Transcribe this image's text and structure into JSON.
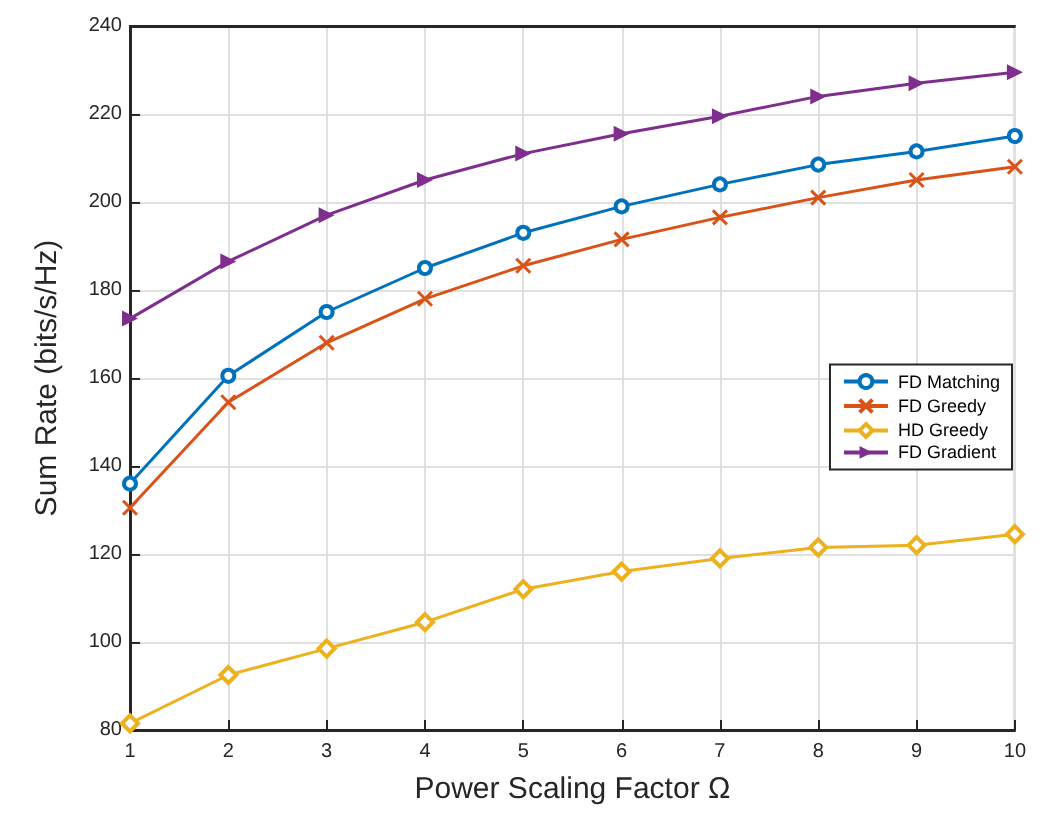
{
  "chart_data": {
    "type": "line",
    "xlabel": "Power Scaling Factor Ω",
    "ylabel": "Sum Rate (bits/s/Hz)",
    "x": [
      1,
      2,
      3,
      4,
      5,
      6,
      7,
      8,
      9,
      10
    ],
    "xlim": [
      1,
      10
    ],
    "xticks": [
      1,
      2,
      3,
      4,
      5,
      6,
      7,
      8,
      9,
      10
    ],
    "ylim": [
      80,
      240
    ],
    "yticks": [
      80,
      100,
      120,
      140,
      160,
      180,
      200,
      220,
      240
    ],
    "grid": true,
    "legend": "right",
    "series": [
      {
        "name": "FD Matching",
        "color": "#0072bd",
        "marker": "circle",
        "values": [
          136,
          160.5,
          175,
          185,
          193,
          199,
          204,
          208.5,
          211.5,
          215
        ]
      },
      {
        "name": "FD Greedy",
        "color": "#d95319",
        "marker": "cross",
        "values": [
          130.5,
          154.5,
          168,
          178,
          185.5,
          191.5,
          196.5,
          201,
          205,
          208
        ]
      },
      {
        "name": "HD Greedy",
        "color": "#edb120",
        "marker": "diamond",
        "values": [
          81.5,
          92.5,
          98.5,
          104.5,
          112,
          116,
          119,
          121.5,
          122,
          124.5
        ]
      },
      {
        "name": "FD Gradient",
        "color": "#7e2f8e",
        "marker": "triangle",
        "values": [
          173.5,
          186.5,
          197,
          205,
          211,
          215.5,
          219.5,
          224,
          227,
          229.5
        ]
      }
    ]
  }
}
